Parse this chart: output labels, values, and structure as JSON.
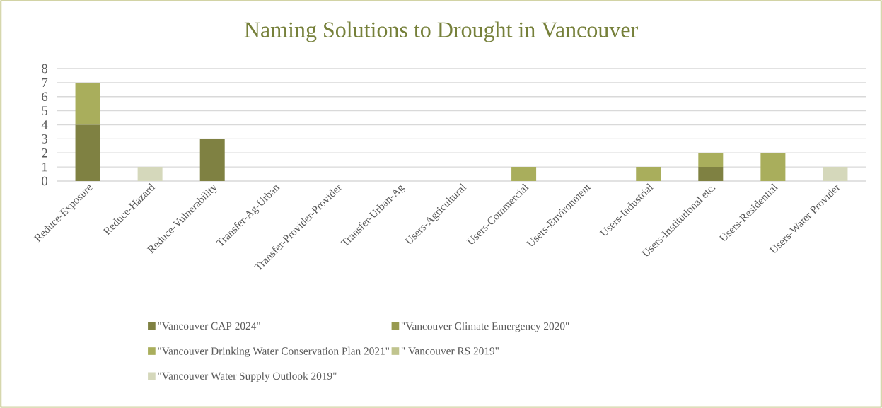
{
  "chart_data": {
    "type": "bar",
    "stacked": true,
    "title": "Naming Solutions to Drought in Vancouver",
    "categories": [
      "Reduce-Exposure",
      "Reduce-Hazard",
      "Reduce-Vulnerability",
      "Transfer-Ag-Urban",
      "Transfer-Provider-Provider",
      "Transfer-Urban-Ag",
      "Users-Agricultural",
      "Users-Commercial",
      "Users-Environment",
      "Users-Industrial",
      "Users-Institutional etc.",
      "Users-Residential",
      "Users-Water Provider"
    ],
    "series": [
      {
        "name": "\"Vancouver  CAP 2024\"",
        "color": "#7f8142",
        "values": [
          4,
          0,
          3,
          0,
          0,
          0,
          0,
          0,
          0,
          0,
          1,
          0,
          0
        ]
      },
      {
        "name": "\"Vancouver  Climate Emergency 2020\"",
        "color": "#989a4f",
        "values": [
          0,
          0,
          0,
          0,
          0,
          0,
          0,
          0,
          0,
          0,
          0,
          0,
          0
        ]
      },
      {
        "name": "\"Vancouver  Drinking Water Conservation Plan 2021\"",
        "color": "#a9ae5c",
        "values": [
          3,
          0,
          0,
          0,
          0,
          0,
          0,
          1,
          0,
          1,
          1,
          2,
          0
        ]
      },
      {
        "name": "\" Vancouver RS 2019\"",
        "color": "#c0c48e",
        "values": [
          0,
          0,
          0,
          0,
          0,
          0,
          0,
          0,
          0,
          0,
          0,
          0,
          0
        ]
      },
      {
        "name": "\"Vancouver  Water Supply Outlook 2019\"",
        "color": "#d5d8bb",
        "values": [
          0,
          1,
          0,
          0,
          0,
          0,
          0,
          0,
          0,
          0,
          0,
          0,
          1
        ]
      }
    ],
    "ylim": [
      0,
      8
    ],
    "yticks": [
      0,
      1,
      2,
      3,
      4,
      5,
      6,
      7,
      8
    ],
    "grid": "y",
    "legend": "bottom"
  }
}
